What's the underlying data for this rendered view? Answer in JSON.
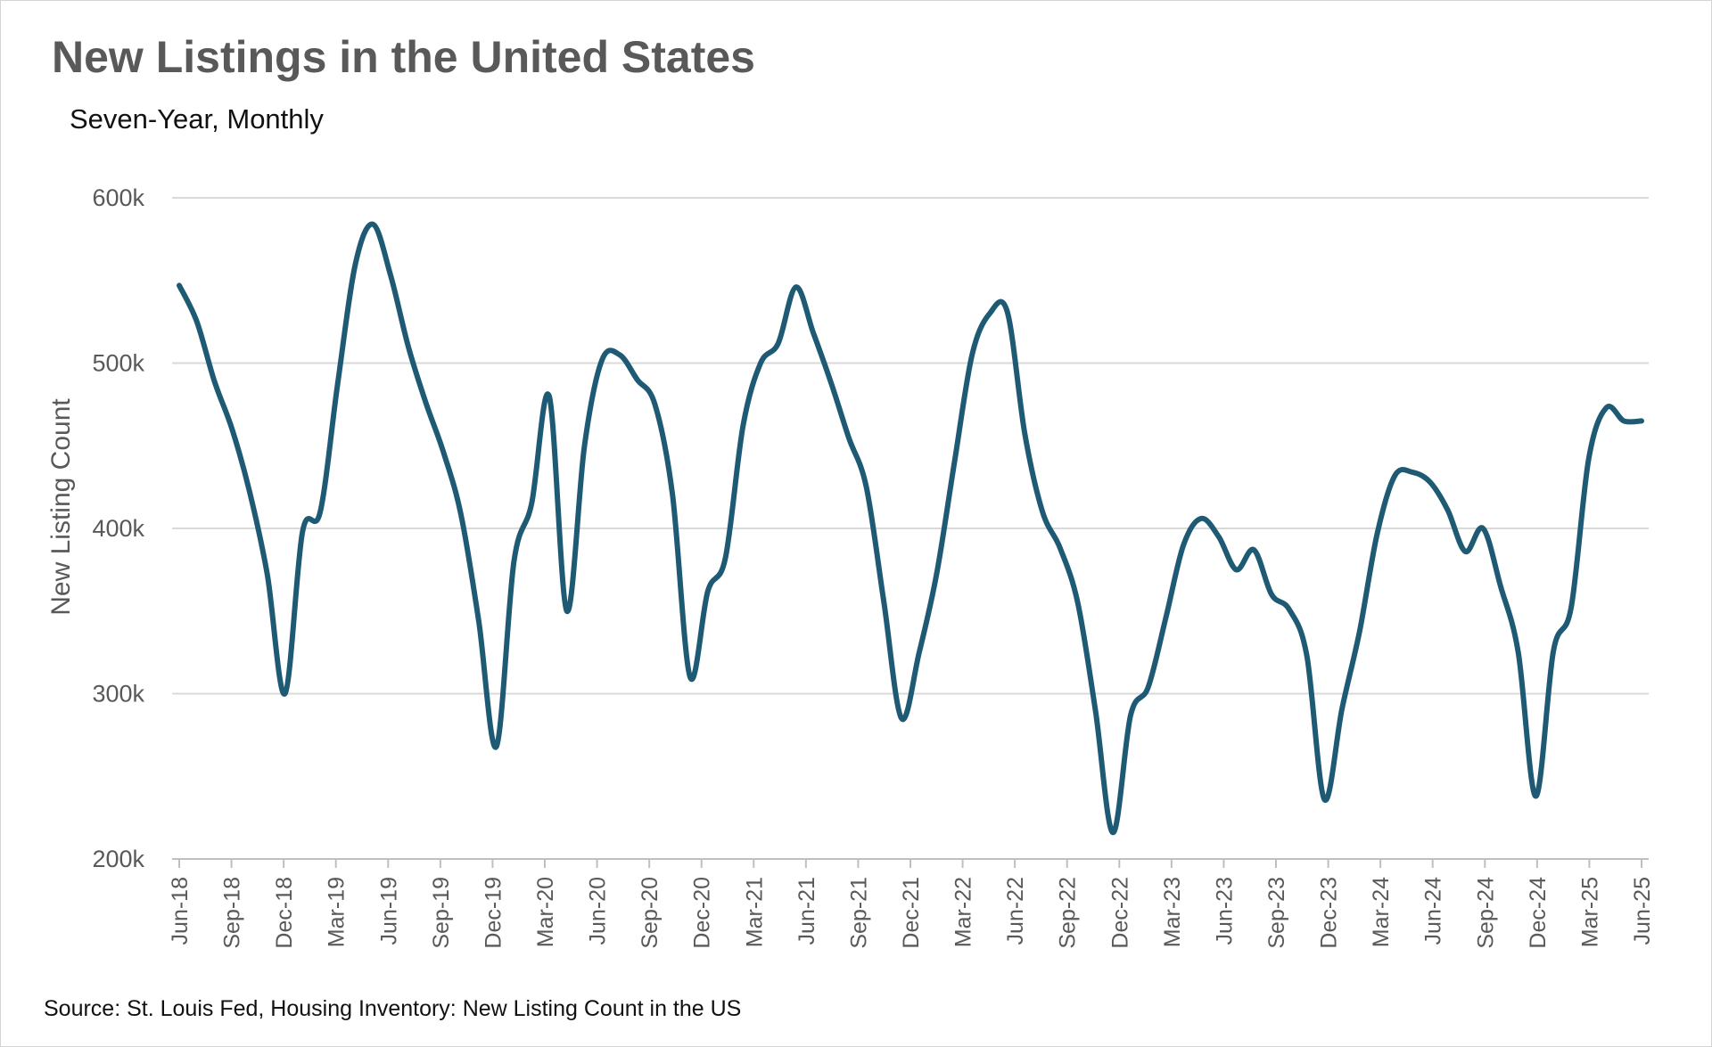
{
  "chart_data": {
    "type": "line",
    "title": "New Listings in the United States",
    "subtitle": "Seven-Year, Monthly",
    "source": "Source: St. Louis Fed, Housing Inventory: New Listing Count in the US",
    "xlabel": "",
    "ylabel": "New Listing Count",
    "ylim": [
      200000,
      600000
    ],
    "y_ticks": [
      {
        "value": 200000,
        "label": "200k"
      },
      {
        "value": 300000,
        "label": "300k"
      },
      {
        "value": 400000,
        "label": "400k"
      },
      {
        "value": 500000,
        "label": "500k"
      },
      {
        "value": 600000,
        "label": "600k"
      }
    ],
    "x_tick_labels": [
      "Jun-18",
      "Sep-18",
      "Dec-18",
      "Mar-19",
      "Jun-19",
      "Sep-19",
      "Dec-19",
      "Mar-20",
      "Jun-20",
      "Sep-20",
      "Dec-20",
      "Mar-21",
      "Jun-21",
      "Sep-21",
      "Dec-21",
      "Mar-22",
      "Jun-22",
      "Sep-22",
      "Dec-22",
      "Mar-23",
      "Jun-23",
      "Sep-23",
      "Dec-23",
      "Mar-24",
      "Jun-24",
      "Sep-24",
      "Dec-24",
      "Mar-25",
      "Jun-25"
    ],
    "grid": true,
    "series": [
      {
        "name": "New Listing Count",
        "color": "#1f5a74",
        "values": [
          547000,
          525000,
          489000,
          460000,
          422000,
          372000,
          300000,
          398000,
          410000,
          488000,
          560000,
          584000,
          553000,
          510000,
          476000,
          446000,
          408000,
          344000,
          268000,
          380000,
          415000,
          480000,
          350000,
          450000,
          502000,
          505000,
          490000,
          475000,
          420000,
          310000,
          362000,
          382000,
          462000,
          500000,
          512000,
          546000,
          518000,
          488000,
          455000,
          425000,
          355000,
          285000,
          325000,
          373000,
          440000,
          505000,
          530000,
          531000,
          457000,
          410000,
          388000,
          355000,
          290000,
          216000,
          287000,
          304000,
          346000,
          390000,
          406000,
          395000,
          375000,
          387000,
          360000,
          351000,
          323000,
          236000,
          291000,
          338000,
          397000,
          432000,
          434000,
          428000,
          411000,
          386000,
          400000,
          365000,
          325000,
          238000,
          326000,
          352000,
          442000,
          473000,
          465000,
          465000
        ]
      }
    ]
  }
}
